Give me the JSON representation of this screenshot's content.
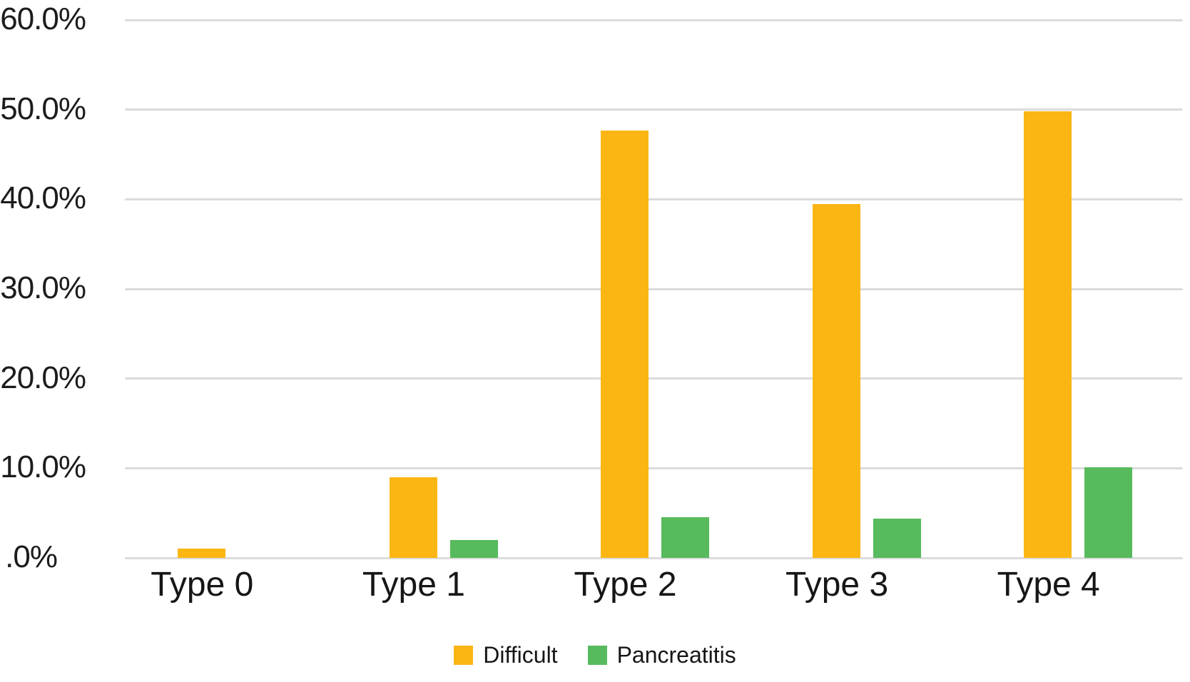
{
  "chart_data": {
    "type": "bar",
    "title": "",
    "xlabel": "",
    "ylabel": "",
    "categories": [
      "Type 0",
      "Type 1",
      "Type 2",
      "Type 3",
      "Type 4"
    ],
    "series": [
      {
        "name": "Difficult",
        "color": "#FBB614",
        "values": [
          1.0,
          9.0,
          47.7,
          39.5,
          49.8
        ]
      },
      {
        "name": "Pancreatitis",
        "color": "#57BA5D",
        "values": [
          0.0,
          2.0,
          4.5,
          4.4,
          10.1
        ]
      }
    ],
    "ylim": [
      0,
      60
    ],
    "ytick_step": 10,
    "ytick_labels": [
      "60.0%",
      "50.0%",
      "40.0%",
      "30.0%",
      "20.0%",
      "10.0%",
      ".0%"
    ],
    "grid": true,
    "legend_position": "bottom",
    "colors": {
      "gridline": "#dbdbdb",
      "text": "#1c1c1c",
      "background": "#ffffff"
    }
  }
}
